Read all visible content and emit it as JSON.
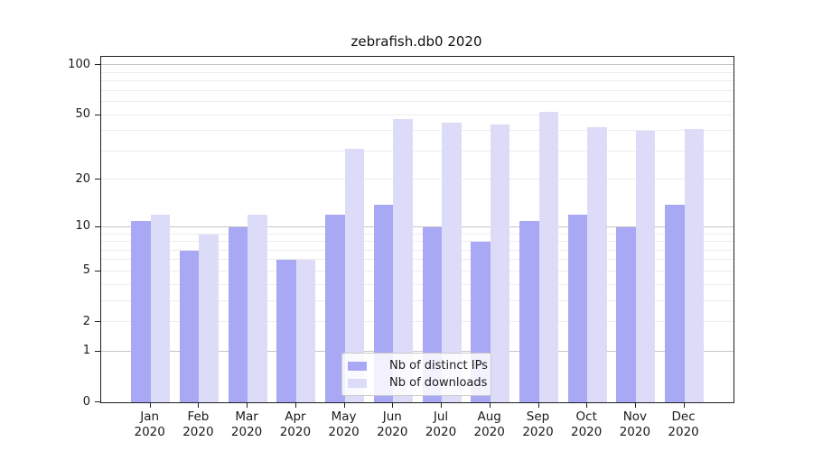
{
  "chart_data": {
    "type": "bar",
    "title": "zebrafish.db0 2020",
    "xlabel": "",
    "ylabel": "",
    "categories": [
      "Jan 2020",
      "Feb 2020",
      "Mar 2020",
      "Apr 2020",
      "May 2020",
      "Jun 2020",
      "Jul 2020",
      "Aug 2020",
      "Sep 2020",
      "Oct 2020",
      "Nov 2020",
      "Dec 2020"
    ],
    "x_tick_months": [
      "Jan",
      "Feb",
      "Mar",
      "Apr",
      "May",
      "Jun",
      "Jul",
      "Aug",
      "Sep",
      "Oct",
      "Nov",
      "Dec"
    ],
    "x_tick_year": "2020",
    "series": [
      {
        "name": "Nb of distinct IPs",
        "color": "#a8a8f5",
        "values": [
          11,
          7,
          10,
          6,
          12,
          14,
          10,
          8,
          11,
          12,
          10,
          14
        ]
      },
      {
        "name": "Nb of downloads",
        "color": "#dcdcf9",
        "values": [
          12,
          9,
          12,
          6,
          31,
          47,
          45,
          44,
          52,
          42,
          40,
          41
        ]
      }
    ],
    "y_scale": "log-like (log10 above 1, zero baseline shown)",
    "y_ticks": [
      0,
      1,
      2,
      5,
      10,
      20,
      50,
      100
    ],
    "ylim": [
      0,
      112
    ],
    "grid": {
      "major_lines": [
        1,
        10,
        100
      ],
      "minor_lines": [
        2,
        3,
        4,
        5,
        6,
        7,
        8,
        9,
        20,
        30,
        40,
        50,
        60,
        70,
        80,
        90
      ]
    },
    "legend": {
      "position": "lower center, inside plot",
      "items": [
        "Nb of distinct IPs",
        "Nb of downloads"
      ]
    }
  },
  "colors": {
    "bar_distinct_ips": "#a8a8f5",
    "bar_downloads": "#dcdcf9",
    "grid_major": "#c6c6c6",
    "grid_minor": "#ededed",
    "spine": "#1f1f1f",
    "text": "#1a1a1a",
    "legend_border": "#cccccc",
    "background": "#ffffff"
  }
}
